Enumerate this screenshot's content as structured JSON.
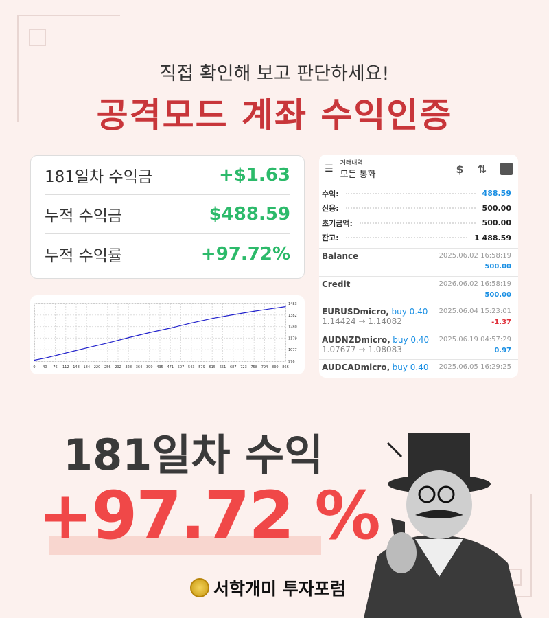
{
  "header": {
    "subtitle": "직접 확인해 보고 판단하세요!",
    "title": "공격모드 계좌 수익인증"
  },
  "summary": [
    {
      "label": "181일차 수익금",
      "value": "+$1.63"
    },
    {
      "label": "누적 수익금",
      "value": "$488.59"
    },
    {
      "label": "누적 수익률",
      "value": "+97.72%"
    }
  ],
  "colors": {
    "accent": "#c8363a",
    "green": "#2cba6a",
    "big": "#f04848",
    "blue": "#1a8fe3",
    "red": "#e0303a"
  },
  "chart_data": {
    "type": "line",
    "x": [
      0,
      40,
      112,
      184,
      256,
      328,
      399,
      471,
      543,
      615,
      687,
      758,
      830,
      866
    ],
    "values": [
      985,
      1005,
      1050,
      1095,
      1138,
      1185,
      1228,
      1268,
      1312,
      1352,
      1385,
      1415,
      1442,
      1455
    ],
    "xticks": [
      "0",
      "40",
      "76",
      "112",
      "148",
      "184",
      "220",
      "256",
      "292",
      "328",
      "364",
      "399",
      "435",
      "471",
      "507",
      "543",
      "579",
      "615",
      "651",
      "687",
      "723",
      "758",
      "794",
      "830",
      "866"
    ],
    "yticks": [
      "976",
      "1077",
      "1179",
      "1280",
      "1382",
      "1483"
    ],
    "ylim": [
      976,
      1483
    ],
    "xlim": [
      0,
      866
    ],
    "grid": true,
    "color": "#2222cc"
  },
  "phone": {
    "subtitle": "거래내역",
    "title": "모든 통화",
    "icons": [
      "menu-icon",
      "currency-exchange-icon",
      "sort-icon",
      "calendar-icon"
    ],
    "summary": [
      {
        "label": "수익:",
        "value": "488.59",
        "color": "#1a8fe3"
      },
      {
        "label": "신용:",
        "value": "500.00",
        "color": "#222"
      },
      {
        "label": "초기금액:",
        "value": "500.00",
        "color": "#222"
      },
      {
        "label": "잔고:",
        "value": "1 488.59",
        "color": "#222"
      }
    ],
    "deals": [
      {
        "name": "Balance",
        "detail": "",
        "price": "",
        "time": "2025.06.02 16:58:19",
        "amount": "500.00",
        "color": "#1a8fe3"
      },
      {
        "name": "Credit",
        "detail": "",
        "price": "",
        "time": "2026.06.02 16:58:19",
        "amount": "500.00",
        "color": "#1a8fe3"
      },
      {
        "name": "EURUSDmicro,",
        "detail": "buy 0.40",
        "price": "1.14424 → 1.14082",
        "time": "2025.06.04 15:23:01",
        "amount": "-1.37",
        "color": "#e0303a"
      },
      {
        "name": "AUDNZDmicro,",
        "detail": "buy 0.40",
        "price": "1.07677 → 1.08083",
        "time": "2025.06.19 04:57:29",
        "amount": "0.97",
        "color": "#1a8fe3"
      },
      {
        "name": "AUDCADmicro,",
        "detail": "buy 0.40",
        "price": "",
        "time": "2025.06.05 16:29:25",
        "amount": "",
        "color": "#1a8fe3"
      }
    ]
  },
  "hero": {
    "line1": "181일차 수익",
    "line2": "+97.72 %"
  },
  "brand": {
    "name": "서학개미 투자포럼"
  }
}
